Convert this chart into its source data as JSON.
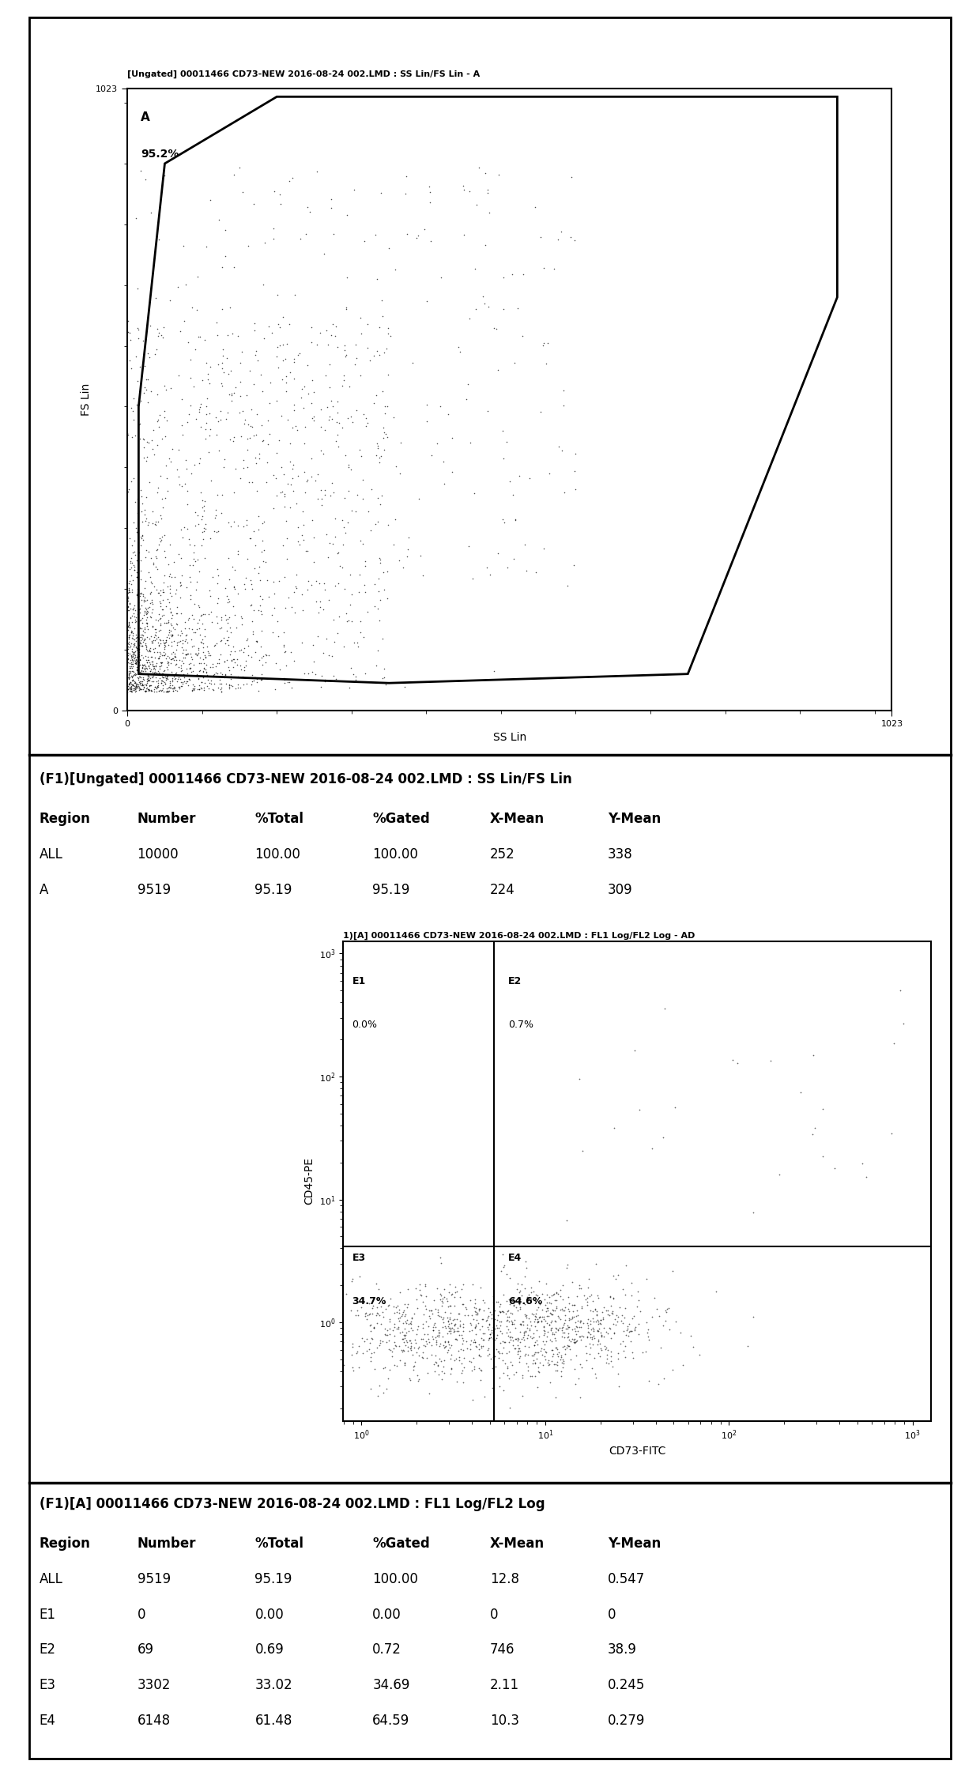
{
  "plot1_title": "[Ungated] 00011466 CD73-NEW 2016-08-24 002.LMD : SS Lin/FS Lin - A",
  "plot1_xlabel": "SS Lin",
  "plot1_ylabel": "FS Lin",
  "plot1_region_label": "A",
  "plot1_region_pct": "95.2%",
  "plot1_scatter_seed": 42,
  "plot1_n_points": 2000,
  "table1_title": "(F1)[Ungated] 00011466 CD73-NEW 2016-08-24 002.LMD : SS Lin/FS Lin",
  "table1_headers": [
    "Region",
    "Number",
    "%Total",
    "%Gated",
    "X-Mean",
    "Y-Mean"
  ],
  "table1_rows": [
    [
      "ALL",
      "10000",
      "100.00",
      "100.00",
      "252",
      "338"
    ],
    [
      "A",
      "9519",
      "95.19",
      "95.19",
      "224",
      "309"
    ]
  ],
  "plot2_title": "1)[A] 00011466 CD73-NEW 2016-08-24 002.LMD : FL1 Log/FL2 Log - AD",
  "plot2_xlabel": "CD73-FITC",
  "plot2_ylabel": "CD45-PE",
  "plot2_e1_label": "E1",
  "plot2_e1_pct": "0.0%",
  "plot2_e2_label": "E2",
  "plot2_e2_pct": "0.7%",
  "plot2_e3_label": "E3",
  "plot2_e3_pct": "34.7%",
  "plot2_e4_label": "E4",
  "plot2_e4_pct": "64.6%",
  "plot2_scatter_seed": 99,
  "plot2_n_points": 1200,
  "table2_title": "(F1)[A] 00011466 CD73-NEW 2016-08-24 002.LMD : FL1 Log/FL2 Log",
  "table2_headers": [
    "Region",
    "Number",
    "%Total",
    "%Gated",
    "X-Mean",
    "Y-Mean"
  ],
  "table2_rows": [
    [
      "ALL",
      "9519",
      "95.19",
      "100.00",
      "12.8",
      "0.547"
    ],
    [
      "E1",
      "0",
      "0.00",
      "0.00",
      "0",
      "0"
    ],
    [
      "E2",
      "69",
      "0.69",
      "0.72",
      "746",
      "38.9"
    ],
    [
      "E3",
      "3302",
      "33.02",
      "34.69",
      "2.11",
      "0.245"
    ],
    [
      "E4",
      "6148",
      "61.48",
      "64.59",
      "10.3",
      "0.279"
    ]
  ],
  "background_color": "#ffffff",
  "border_color": "#000000",
  "text_color": "#000000",
  "scatter_color": "#000000",
  "gate_color": "#000000",
  "title_fontsize": 8,
  "axis_label_fontsize": 10,
  "tick_fontsize": 8,
  "table_fontsize": 12,
  "table_title_fontsize": 12,
  "quadrant_label_fontsize": 9
}
